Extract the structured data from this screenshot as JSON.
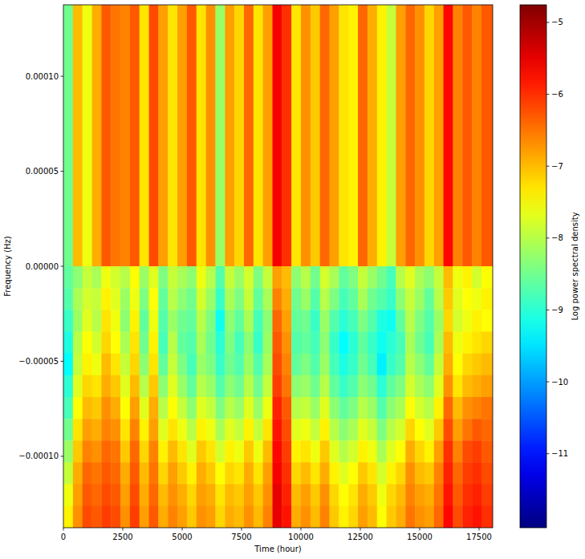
{
  "chart_data": {
    "type": "heatmap",
    "x_label": "Time (hour)",
    "y_label": "Frequency (Hz)",
    "xlim": [
      0,
      18074
    ],
    "ylim": [
      -0.0001376,
      0.0001376
    ],
    "xticks": [
      0,
      2500,
      5000,
      7500,
      10000,
      12500,
      15000,
      17500
    ],
    "yticks": [
      {
        "value": 0.0001,
        "label": "0.00010"
      },
      {
        "value": 5e-05,
        "label": "0.00005"
      },
      {
        "value": 0,
        "label": "0.00000"
      },
      {
        "value": -5e-05,
        "label": "−0.00005"
      },
      {
        "value": -0.0001,
        "label": "−0.00010"
      }
    ],
    "x_edges": [
      0,
      400,
      800,
      1200,
      1600,
      2000,
      2400,
      2800,
      3200,
      3600,
      4000,
      4400,
      4800,
      5200,
      5600,
      6000,
      6400,
      6800,
      7200,
      7600,
      8000,
      8400,
      8800,
      9200,
      9600,
      10000,
      10400,
      10800,
      11200,
      11600,
      12000,
      12400,
      12800,
      13200,
      13600,
      14000,
      14400,
      14800,
      15200,
      15600,
      16000,
      16400,
      16800,
      17200,
      17600,
      18074
    ],
    "y_edges": [
      0.0001376,
      0,
      -1.15e-05,
      -2.29e-05,
      -3.44e-05,
      -4.59e-05,
      -5.73e-05,
      -6.88e-05,
      -8.03e-05,
      -9.17e-05,
      -0.0001032,
      -0.0001147,
      -0.0001261,
      -0.0001376
    ],
    "cells": [
      [
        -8.5,
        -7.0,
        -7.6,
        -6.9,
        -6.3,
        -6.5,
        -6.6,
        -6.3,
        -7.3,
        -6.2,
        -6.8,
        -7.3,
        -6.8,
        -6.3,
        -7.3,
        -6.7,
        -8.2,
        -6.8,
        -7.2,
        -6.4,
        -7.3,
        -6.8,
        -5.6,
        -6.0,
        -7.3,
        -6.7,
        -7.1,
        -6.4,
        -6.8,
        -7.3,
        -7.4,
        -6.4,
        -6.9,
        -7.4,
        -7.9,
        -6.8,
        -6.4,
        -6.7,
        -7.2,
        -6.8,
        -5.7,
        -6.6,
        -6.3,
        -6.6,
        -6.3
      ],
      [
        -8.6,
        -8.3,
        -7.9,
        -8.1,
        -7.6,
        -7.8,
        -8.0,
        -7.5,
        -8.2,
        -7.7,
        -8.4,
        -7.9,
        -8.1,
        -8.3,
        -7.6,
        -8.0,
        -8.7,
        -7.9,
        -8.2,
        -7.8,
        -8.4,
        -7.9,
        -6.8,
        -7.0,
        -8.3,
        -8.0,
        -8.5,
        -7.8,
        -8.1,
        -8.6,
        -8.4,
        -7.9,
        -8.2,
        -8.5,
        -8.8,
        -8.0,
        -7.7,
        -8.1,
        -8.3,
        -7.9,
        -7.0,
        -7.6,
        -7.4,
        -7.8,
        -7.5
      ],
      [
        -8.7,
        -8.1,
        -7.8,
        -7.9,
        -7.4,
        -7.7,
        -8.2,
        -7.6,
        -8.4,
        -7.5,
        -8.6,
        -8.0,
        -8.3,
        -8.5,
        -7.8,
        -8.2,
        -8.9,
        -8.1,
        -8.4,
        -7.9,
        -8.6,
        -8.1,
        -6.6,
        -6.9,
        -8.5,
        -8.2,
        -8.7,
        -8.0,
        -8.4,
        -8.8,
        -8.6,
        -8.1,
        -8.5,
        -8.7,
        -8.9,
        -8.3,
        -7.9,
        -8.2,
        -8.6,
        -8.0,
        -7.1,
        -7.7,
        -7.5,
        -7.6,
        -7.4
      ],
      [
        -8.9,
        -8.2,
        -7.7,
        -8.0,
        -7.3,
        -7.6,
        -8.3,
        -7.4,
        -8.6,
        -7.6,
        -8.7,
        -8.2,
        -8.5,
        -8.6,
        -8.0,
        -8.4,
        -9.2,
        -8.3,
        -8.6,
        -8.1,
        -8.8,
        -8.3,
        -6.4,
        -6.8,
        -8.6,
        -8.5,
        -8.9,
        -8.2,
        -8.7,
        -9.0,
        -8.8,
        -8.4,
        -8.7,
        -9.1,
        -9.2,
        -8.6,
        -8.0,
        -8.4,
        -8.7,
        -8.2,
        -7.2,
        -7.8,
        -7.6,
        -7.4,
        -7.5
      ],
      [
        -9.1,
        -8.0,
        -7.5,
        -7.8,
        -7.2,
        -7.5,
        -8.1,
        -7.3,
        -8.5,
        -7.4,
        -8.8,
        -8.0,
        -8.6,
        -8.7,
        -8.1,
        -8.5,
        -9.0,
        -8.4,
        -8.8,
        -8.3,
        -8.9,
        -8.2,
        -6.3,
        -6.7,
        -8.7,
        -8.6,
        -8.8,
        -8.3,
        -8.9,
        -9.3,
        -9.0,
        -8.6,
        -8.9,
        -9.2,
        -9.0,
        -8.8,
        -8.1,
        -8.5,
        -8.8,
        -8.1,
        -7.0,
        -7.6,
        -7.4,
        -7.3,
        -7.2
      ],
      [
        -9.3,
        -7.9,
        -7.4,
        -7.6,
        -7.0,
        -7.3,
        -7.9,
        -7.2,
        -8.3,
        -7.3,
        -8.6,
        -7.9,
        -8.4,
        -8.8,
        -8.2,
        -8.4,
        -8.9,
        -8.5,
        -8.7,
        -8.2,
        -8.7,
        -8.1,
        -6.2,
        -6.6,
        -8.6,
        -8.4,
        -8.7,
        -8.2,
        -8.8,
        -9.1,
        -8.9,
        -8.5,
        -8.8,
        -9.4,
        -8.9,
        -8.7,
        -8.0,
        -8.3,
        -8.6,
        -7.9,
        -6.9,
        -7.5,
        -7.2,
        -7.1,
        -7.0
      ],
      [
        -9.0,
        -7.7,
        -7.2,
        -7.3,
        -6.9,
        -7.1,
        -7.7,
        -7.0,
        -8.0,
        -7.1,
        -8.3,
        -7.7,
        -8.2,
        -8.6,
        -8.0,
        -8.2,
        -8.7,
        -8.3,
        -8.5,
        -8.0,
        -8.5,
        -7.9,
        -6.1,
        -6.5,
        -8.3,
        -8.2,
        -8.5,
        -8.0,
        -8.6,
        -8.9,
        -8.7,
        -8.3,
        -8.5,
        -9.0,
        -8.6,
        -8.4,
        -7.8,
        -8.1,
        -8.3,
        -7.7,
        -6.7,
        -7.3,
        -7.0,
        -6.9,
        -6.8
      ],
      [
        -8.8,
        -7.5,
        -7.0,
        -7.1,
        -6.7,
        -6.9,
        -7.5,
        -6.8,
        -7.7,
        -6.9,
        -8.0,
        -7.5,
        -7.9,
        -8.3,
        -7.7,
        -7.9,
        -8.4,
        -8.0,
        -8.2,
        -7.7,
        -8.2,
        -7.6,
        -5.9,
        -6.3,
        -8.0,
        -7.9,
        -8.2,
        -7.7,
        -8.3,
        -8.6,
        -8.4,
        -8.0,
        -8.2,
        -8.7,
        -8.3,
        -8.1,
        -7.5,
        -7.8,
        -8.0,
        -7.4,
        -6.4,
        -7.0,
        -6.7,
        -6.6,
        -6.5
      ],
      [
        -8.5,
        -7.3,
        -6.8,
        -6.9,
        -6.6,
        -6.7,
        -7.3,
        -6.6,
        -7.4,
        -6.8,
        -7.7,
        -7.3,
        -7.6,
        -8.0,
        -7.4,
        -7.6,
        -8.1,
        -7.7,
        -7.9,
        -7.4,
        -7.9,
        -7.3,
        -5.8,
        -6.2,
        -7.7,
        -7.6,
        -7.9,
        -7.4,
        -8.0,
        -8.3,
        -8.1,
        -7.7,
        -7.9,
        -8.4,
        -8.0,
        -7.8,
        -7.2,
        -7.5,
        -7.7,
        -7.1,
        -6.2,
        -6.8,
        -6.5,
        -6.3,
        -6.4
      ],
      [
        -8.2,
        -7.1,
        -6.6,
        -6.7,
        -6.4,
        -6.5,
        -7.1,
        -6.4,
        -7.2,
        -6.6,
        -7.4,
        -7.0,
        -7.3,
        -7.7,
        -7.1,
        -7.3,
        -7.8,
        -7.4,
        -7.6,
        -7.1,
        -7.6,
        -7.0,
        -5.7,
        -6.1,
        -7.4,
        -7.3,
        -7.6,
        -7.1,
        -7.7,
        -8.0,
        -7.8,
        -7.4,
        -7.6,
        -8.1,
        -7.7,
        -7.5,
        -6.9,
        -7.2,
        -7.4,
        -6.8,
        -6.0,
        -6.6,
        -6.2,
        -6.1,
        -6.3
      ],
      [
        -7.9,
        -6.9,
        -6.4,
        -6.5,
        -6.3,
        -6.4,
        -6.9,
        -6.3,
        -7.0,
        -6.5,
        -7.2,
        -6.8,
        -7.1,
        -7.4,
        -6.9,
        -7.1,
        -7.5,
        -7.2,
        -7.3,
        -6.9,
        -7.3,
        -6.8,
        -5.6,
        -6.0,
        -7.2,
        -7.0,
        -7.3,
        -6.9,
        -7.4,
        -7.7,
        -7.5,
        -7.1,
        -7.3,
        -7.8,
        -7.4,
        -7.2,
        -6.7,
        -7.0,
        -7.1,
        -6.6,
        -5.9,
        -6.4,
        -6.1,
        -6.0,
        -6.2
      ],
      [
        -7.6,
        -6.8,
        -6.3,
        -6.4,
        -6.2,
        -6.3,
        -6.8,
        -6.2,
        -6.9,
        -6.4,
        -7.0,
        -6.7,
        -6.9,
        -7.2,
        -6.8,
        -6.9,
        -7.3,
        -7.0,
        -7.1,
        -6.8,
        -7.1,
        -6.7,
        -5.5,
        -5.9,
        -7.0,
        -6.8,
        -7.1,
        -6.7,
        -7.2,
        -7.5,
        -7.3,
        -6.9,
        -7.1,
        -7.6,
        -7.2,
        -7.0,
        -6.6,
        -6.8,
        -6.9,
        -6.5,
        -5.8,
        -6.3,
        -6.0,
        -5.9,
        -6.1
      ],
      [
        -7.4,
        -6.7,
        -6.2,
        -6.3,
        -6.1,
        -6.2,
        -6.7,
        -6.1,
        -6.8,
        -6.3,
        -6.9,
        -6.6,
        -6.8,
        -7.1,
        -6.7,
        -6.8,
        -7.2,
        -6.9,
        -7.0,
        -6.7,
        -7.0,
        -6.6,
        -5.5,
        -5.8,
        -6.9,
        -6.7,
        -7.0,
        -6.6,
        -7.1,
        -7.4,
        -7.2,
        -6.8,
        -7.0,
        -7.5,
        -7.1,
        -6.9,
        -6.5,
        -6.7,
        -6.8,
        -6.4,
        -5.7,
        -6.2,
        -5.9,
        -5.8,
        -6.0
      ]
    ],
    "colorbar": {
      "label": "Log power spectral density",
      "range": [
        -12.03,
        -4.755
      ],
      "ticks": [
        {
          "value": -11,
          "label": "−11"
        },
        {
          "value": -10,
          "label": "−10"
        },
        {
          "value": -9,
          "label": "−9"
        },
        {
          "value": -8,
          "label": "−8"
        },
        {
          "value": -7,
          "label": "−7"
        },
        {
          "value": -6,
          "label": "−6"
        },
        {
          "value": -5,
          "label": "−5"
        }
      ]
    }
  }
}
